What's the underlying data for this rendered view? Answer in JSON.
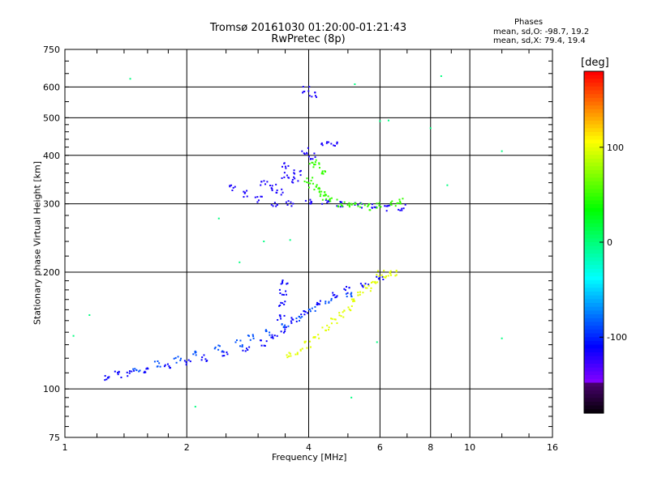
{
  "chart_data": {
    "type": "scatter",
    "title": "Tromsø 20161030 01:20:00-01:21:43",
    "subtitle": "RwPretec (8p)",
    "xlabel": "Frequency [MHz]",
    "ylabel": "Stationary phase Virtual Height [km]",
    "x_scale": "log",
    "y_scale": "log",
    "xlim": [
      1,
      16
    ],
    "ylim": [
      75,
      750
    ],
    "x_ticks": [
      1,
      2,
      4,
      6,
      8,
      10,
      16
    ],
    "y_ticks": [
      75,
      100,
      200,
      300,
      400,
      500,
      600,
      750
    ],
    "grid": true,
    "phase_stats": {
      "title": "Phases",
      "line_o": "mean, sd,O: -98.7, 19.2",
      "line_x": "mean, sd,X:  79.4, 19.4"
    },
    "colorbar": {
      "label": "[deg]",
      "ticks": [
        100,
        0,
        -100
      ],
      "range": [
        -180,
        180
      ]
    },
    "series": [
      {
        "trace": "lower-violet",
        "points": [
          [
            1.28,
            107
          ],
          [
            1.35,
            109
          ],
          [
            1.45,
            110
          ],
          [
            1.6,
            112
          ],
          [
            1.8,
            114
          ],
          [
            2.0,
            117
          ],
          [
            2.2,
            120
          ],
          [
            2.5,
            124
          ],
          [
            2.8,
            127
          ],
          [
            3.1,
            131
          ],
          [
            3.3,
            135
          ],
          [
            3.5,
            142
          ],
          [
            3.7,
            150
          ],
          [
            3.9,
            158
          ],
          [
            4.2,
            168
          ],
          [
            4.6,
            174
          ],
          [
            5.0,
            180
          ],
          [
            5.5,
            186
          ],
          [
            6.0,
            192
          ],
          [
            3.42,
            152
          ],
          [
            3.44,
            165
          ],
          [
            3.46,
            178
          ],
          [
            3.48,
            188
          ]
        ],
        "phase": -110
      },
      {
        "trace": "lower-blue",
        "points": [
          [
            1.5,
            112
          ],
          [
            1.7,
            116
          ],
          [
            1.9,
            119
          ],
          [
            2.1,
            123
          ],
          [
            2.4,
            127
          ],
          [
            2.7,
            131
          ],
          [
            2.9,
            136
          ],
          [
            3.2,
            140
          ],
          [
            3.5,
            146
          ],
          [
            3.8,
            152
          ],
          [
            4.1,
            160
          ],
          [
            4.5,
            168
          ],
          [
            5.0,
            175
          ]
        ],
        "phase": -85
      },
      {
        "trace": "lower-yellow",
        "points": [
          [
            3.6,
            122
          ],
          [
            3.8,
            125
          ],
          [
            4.0,
            130
          ],
          [
            4.2,
            136
          ],
          [
            4.4,
            143
          ],
          [
            4.6,
            150
          ],
          [
            4.8,
            156
          ],
          [
            5.0,
            161
          ],
          [
            5.2,
            168
          ],
          [
            5.4,
            175
          ],
          [
            5.6,
            182
          ],
          [
            5.8,
            190
          ],
          [
            6.0,
            198
          ],
          [
            6.5,
            199
          ],
          [
            6.3,
            196
          ]
        ],
        "phase": 100
      },
      {
        "trace": "upper-violet",
        "points": [
          [
            2.6,
            330
          ],
          [
            2.8,
            318
          ],
          [
            3.0,
            308
          ],
          [
            3.3,
            301
          ],
          [
            3.6,
            301
          ],
          [
            4.0,
            303
          ],
          [
            4.4,
            303
          ],
          [
            4.8,
            300
          ],
          [
            5.3,
            296
          ],
          [
            5.8,
            294
          ],
          [
            6.3,
            293
          ],
          [
            6.8,
            294
          ],
          [
            3.1,
            340
          ],
          [
            3.25,
            330
          ],
          [
            3.4,
            322
          ],
          [
            3.5,
            355
          ],
          [
            3.7,
            345
          ],
          [
            3.9,
            410
          ],
          [
            4.1,
            398
          ],
          [
            4.4,
            425
          ],
          [
            4.6,
            430
          ],
          [
            3.95,
            590
          ],
          [
            4.1,
            575
          ],
          [
            3.5,
            375
          ],
          [
            3.75,
            360
          ]
        ],
        "phase": -115
      },
      {
        "trace": "upper-green",
        "points": [
          [
            4.0,
            345
          ],
          [
            4.1,
            335
          ],
          [
            4.2,
            325
          ],
          [
            4.3,
            318
          ],
          [
            4.4,
            311
          ],
          [
            4.6,
            305
          ],
          [
            4.8,
            300
          ],
          [
            5.0,
            298
          ],
          [
            5.3,
            296
          ],
          [
            5.6,
            294
          ],
          [
            5.9,
            296
          ],
          [
            4.1,
            385
          ],
          [
            4.2,
            375
          ],
          [
            4.3,
            365
          ],
          [
            6.5,
            300
          ],
          [
            6.8,
            305
          ]
        ],
        "phase": 50
      },
      {
        "trace": "scattered",
        "points": [
          [
            1.45,
            630
          ],
          [
            1.05,
            137
          ],
          [
            1.15,
            155
          ],
          [
            2.1,
            90
          ],
          [
            2.4,
            275
          ],
          [
            2.7,
            212
          ],
          [
            3.1,
            240
          ],
          [
            3.6,
            242
          ],
          [
            5.1,
            95
          ],
          [
            5.9,
            132
          ],
          [
            6.0,
            490
          ],
          [
            6.3,
            492
          ],
          [
            8.0,
            470
          ],
          [
            8.5,
            640
          ],
          [
            8.8,
            335
          ],
          [
            12.0,
            410
          ],
          [
            12.0,
            135
          ],
          [
            5.2,
            610
          ]
        ],
        "phase": 0
      }
    ]
  }
}
